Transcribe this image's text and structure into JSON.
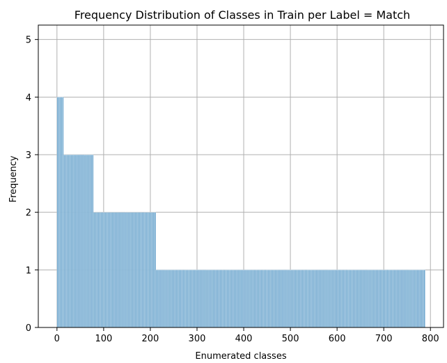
{
  "chart_data": {
    "type": "bar",
    "title": "Frequency Distribution of Classes in Train per Label = Match",
    "xlabel": "Enumerated classes",
    "ylabel": "Frequency",
    "xlim": [
      -40,
      828
    ],
    "ylim": [
      0,
      5.25
    ],
    "xticks": [
      0,
      100,
      200,
      300,
      400,
      500,
      600,
      700,
      800
    ],
    "yticks": [
      0,
      1,
      2,
      3,
      4,
      5
    ],
    "grid": true,
    "bar_color": "#1f77b4",
    "series": [
      {
        "segments": [
          {
            "start": 0,
            "end": 14,
            "value": 4
          },
          {
            "start": 14,
            "end": 78,
            "value": 3
          },
          {
            "start": 78,
            "end": 212,
            "value": 2
          },
          {
            "start": 212,
            "end": 789,
            "value": 1
          }
        ]
      }
    ]
  }
}
